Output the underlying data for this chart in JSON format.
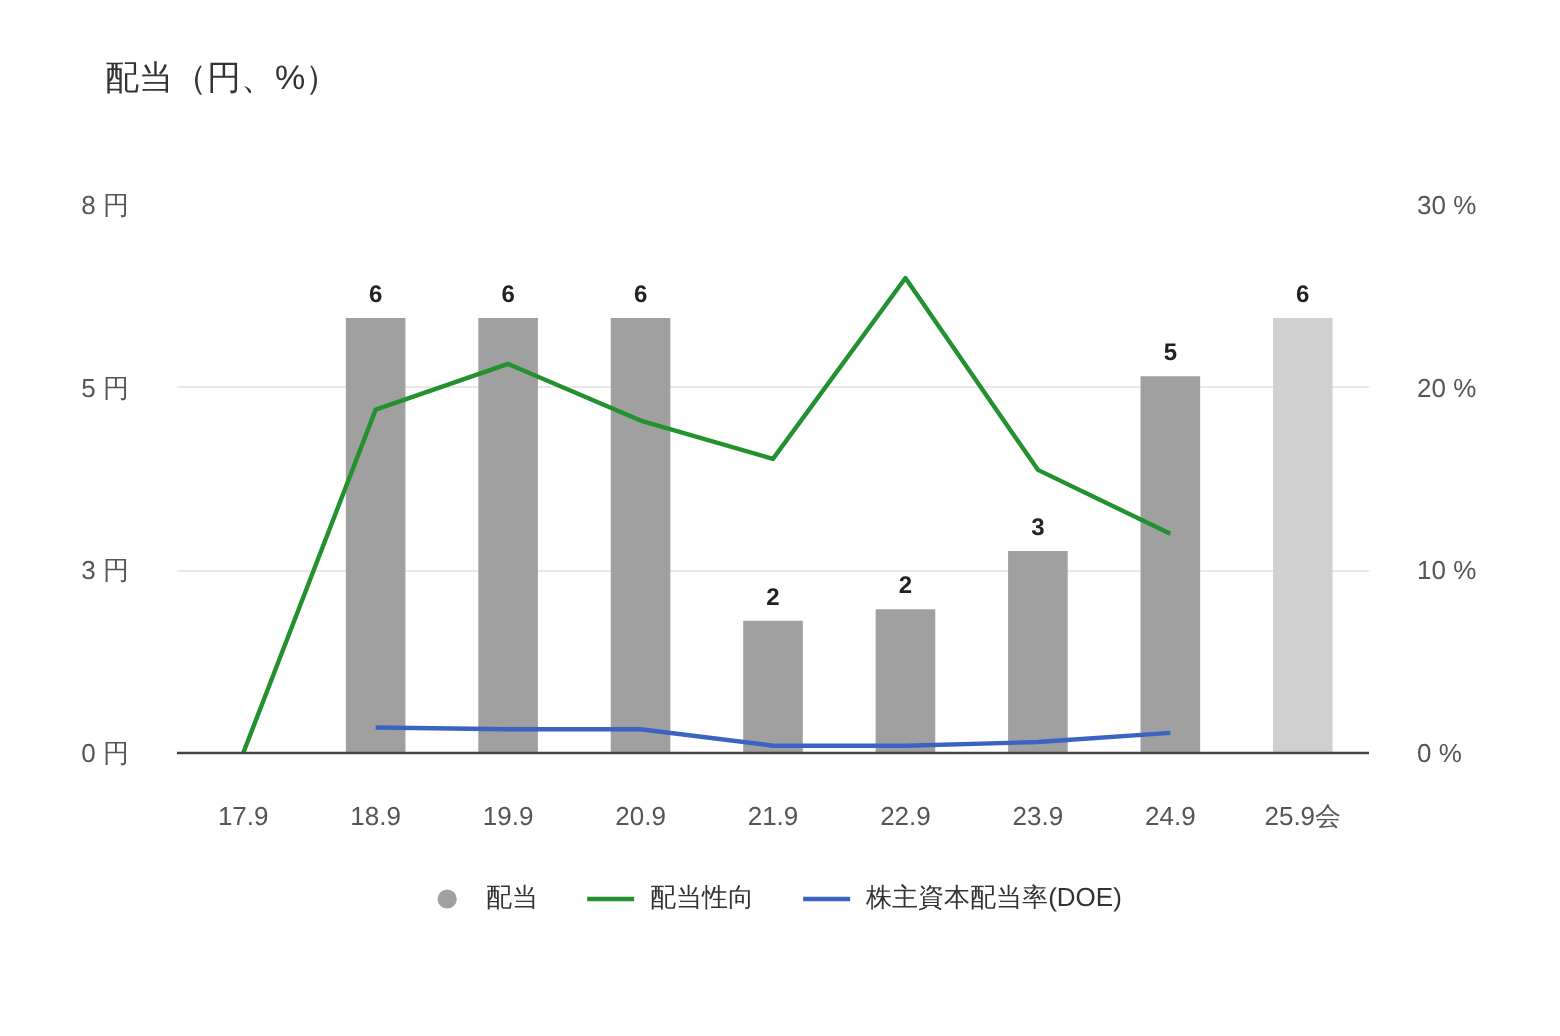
{
  "chart_data": {
    "type": "bar",
    "title": "配当（円、%）",
    "categories": [
      "17.9",
      "18.9",
      "19.9",
      "20.9",
      "21.9",
      "22.9",
      "23.9",
      "24.9",
      "25.9会"
    ],
    "series": [
      {
        "name": "配当",
        "colors": [
          "#a0a0a0",
          "#a0a0a0",
          "#a0a0a0",
          "#a0a0a0",
          "#a0a0a0",
          "#a0a0a0",
          "#a0a0a0",
          "#a0a0a0",
          "#d0d0d0"
        ],
        "values": [
          null,
          6.35,
          6.35,
          6.35,
          1.93,
          2.1,
          2.95,
          5.5,
          6.35
        ],
        "value_labels": [
          null,
          "6",
          "6",
          "6",
          "2",
          "2",
          "3",
          "5",
          "6"
        ]
      },
      {
        "name": "配当性向",
        "type": "line",
        "color": "#23912f",
        "axis": "y2",
        "values": [
          0,
          18.8,
          21.3,
          18.2,
          16.1,
          26.0,
          15.5,
          12.0,
          null
        ]
      },
      {
        "name": "株主資本配当率(DOE)",
        "type": "line",
        "color": "#3a63c4",
        "axis": "y2",
        "values": [
          null,
          1.4,
          1.3,
          1.3,
          0.4,
          0.4,
          0.6,
          1.1,
          null
        ]
      }
    ],
    "ylim": [
      0,
      8
    ],
    "yticks": [
      {
        "value": 0,
        "label": "0 円"
      },
      {
        "value": 2.6667,
        "label": "3 円"
      },
      {
        "value": 5.3333,
        "label": "5 円"
      },
      {
        "value": 8,
        "label": "8 円"
      }
    ],
    "y2lim": [
      0,
      30
    ],
    "y2ticks": [
      {
        "value": 0,
        "label": "0 %"
      },
      {
        "value": 10,
        "label": "10 %"
      },
      {
        "value": 20,
        "label": "20 %"
      },
      {
        "value": 30,
        "label": "30 %"
      }
    ],
    "grid": "y",
    "legend": "bottom"
  }
}
